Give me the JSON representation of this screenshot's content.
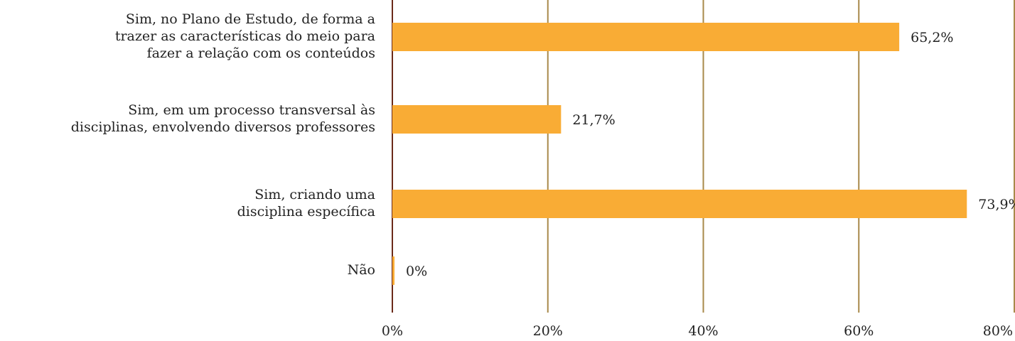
{
  "chart_data": {
    "type": "bar",
    "orientation": "horizontal",
    "categories": [
      [
        "Sim, no Plano de Estudo, de forma a",
        "trazer as características do meio para",
        "fazer a relação com os conteúdos"
      ],
      [
        "Sim, em um processo transversal às",
        "disciplinas, envolvendo diversos professores"
      ],
      [
        "Sim, criando uma",
        "disciplina específica"
      ],
      [
        "Não"
      ]
    ],
    "values": [
      65.2,
      21.7,
      73.9,
      0
    ],
    "value_labels": [
      "65,2%",
      "21,7%",
      "73,9%",
      "0%"
    ],
    "color": "#f9ac35",
    "xlim": [
      0,
      80
    ],
    "xticks": [
      {
        "value": 0,
        "label": "0%"
      },
      {
        "value": 20,
        "label": "20%"
      },
      {
        "value": 40,
        "label": "40%"
      },
      {
        "value": 60,
        "label": "60%"
      },
      {
        "value": 80,
        "label": "80%"
      }
    ],
    "grid": true
  }
}
